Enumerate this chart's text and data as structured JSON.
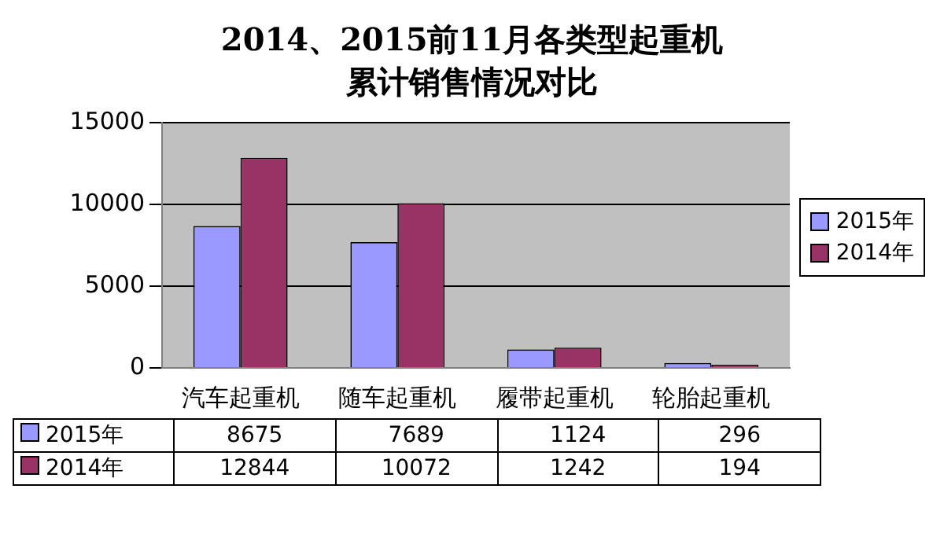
{
  "chart_data": {
    "type": "bar",
    "title": "2014、2015前11月各类型起重机累计销售情况对比",
    "categories": [
      "汽车起重机",
      "随车起重机",
      "履带起重机",
      "轮胎起重机"
    ],
    "series": [
      {
        "name": "2015年",
        "color": "#9999ff",
        "values": [
          8675,
          7689,
          1124,
          296
        ]
      },
      {
        "name": "2014年",
        "color": "#993366",
        "values": [
          12844,
          10072,
          1242,
          194
        ]
      }
    ],
    "ylim": [
      0,
      15000
    ],
    "yticks": [
      0,
      5000,
      10000,
      15000
    ],
    "grid": "y",
    "legend": "right",
    "data_labels": true
  }
}
